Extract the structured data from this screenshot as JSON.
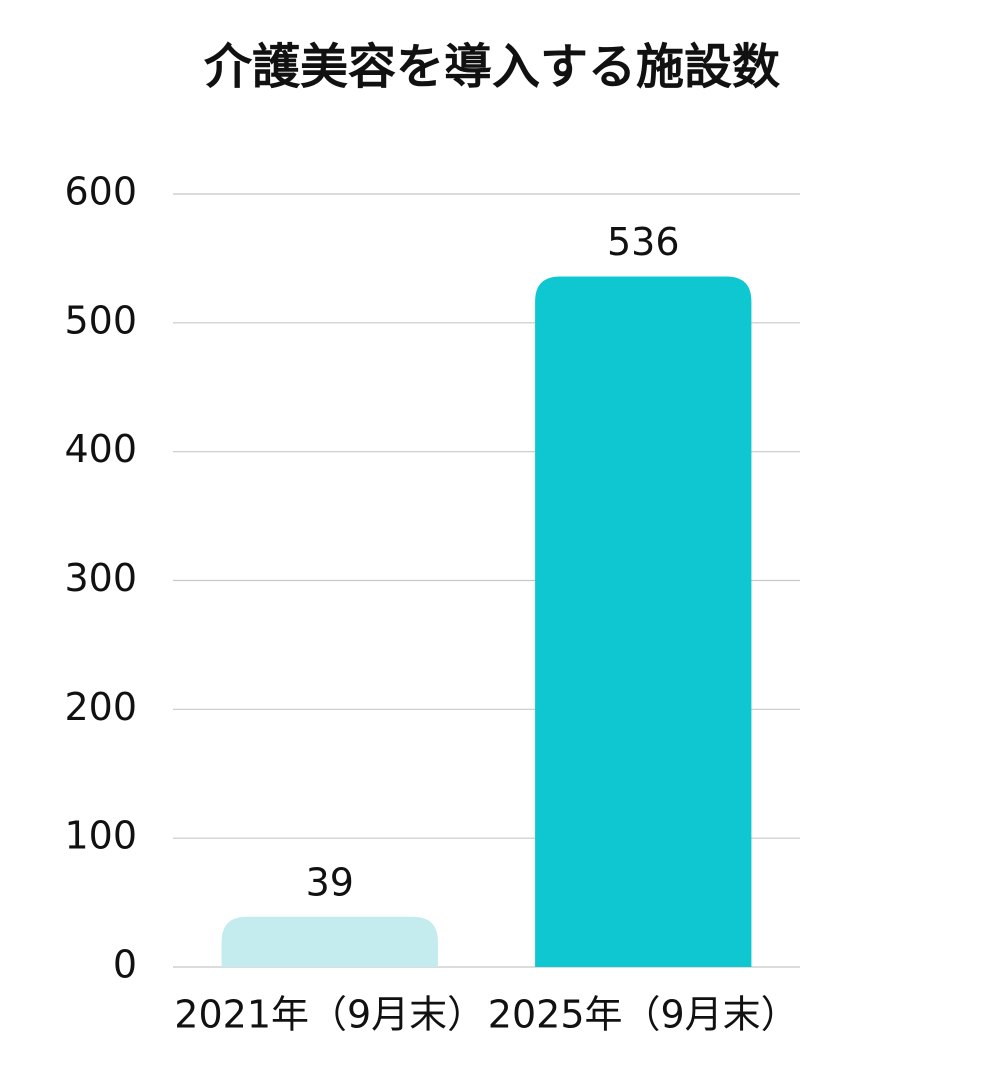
{
  "chart_data": {
    "type": "bar",
    "title": "介護美容を導入する施設数",
    "categories": [
      "2021年（9月末）",
      "2025年（9月末）"
    ],
    "values": [
      39,
      536
    ],
    "colors": [
      "#c4ecee",
      "#0fc7d0"
    ],
    "ylim": [
      0,
      600
    ],
    "yticks": [
      0,
      100,
      200,
      300,
      400,
      500,
      600
    ],
    "grid": true,
    "data_labels": true
  }
}
